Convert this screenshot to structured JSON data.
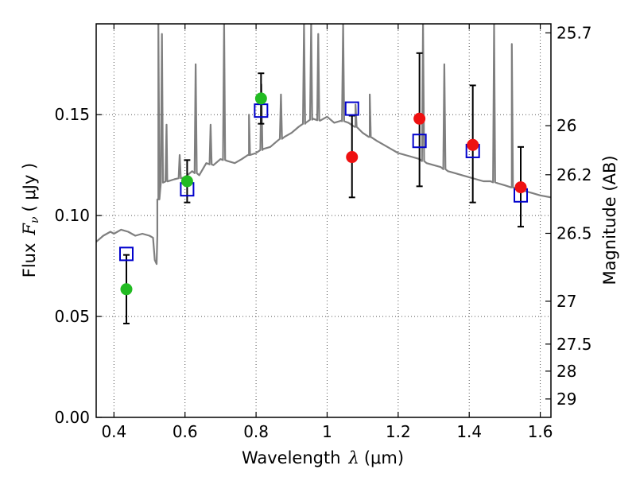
{
  "chart_data": {
    "type": "scatter",
    "xlabel_text": "Wavelength",
    "xlabel_symbol": "λ",
    "xlabel_unit": "(μm)",
    "ylabel_text": "Flux",
    "ylabel_symbol": "F",
    "ylabel_subscript": "ν",
    "ylabel_unit": "( μJy )",
    "y2label": "Magnitude (AB)",
    "xlim": [
      0.35,
      1.63
    ],
    "ylim": [
      0.0,
      0.195
    ],
    "grid": true,
    "x_ticks": [
      0.4,
      0.6,
      0.8,
      1.0,
      1.2,
      1.4,
      1.6
    ],
    "x_tick_labels": [
      "0.4",
      "0.6",
      "0.8",
      "1",
      "1.2",
      "1.4",
      "1.6"
    ],
    "y_ticks": [
      0.0,
      0.05,
      0.1,
      0.15
    ],
    "y_tick_labels": [
      "0.00",
      "0.05",
      "0.10",
      "0.15"
    ],
    "y2_tick_labels": [
      "25.7",
      "26",
      "26.2",
      "26.5",
      "27",
      "27.5",
      "28",
      "29"
    ],
    "y2_tick_mags": [
      25.7,
      26.0,
      26.2,
      26.5,
      27.0,
      27.5,
      28.0,
      29.0
    ],
    "model_points": [
      {
        "x": 0.435,
        "y": 0.081
      },
      {
        "x": 0.606,
        "y": 0.113
      },
      {
        "x": 0.814,
        "y": 0.152
      },
      {
        "x": 1.07,
        "y": 0.153
      },
      {
        "x": 1.26,
        "y": 0.137
      },
      {
        "x": 1.41,
        "y": 0.132
      },
      {
        "x": 1.545,
        "y": 0.11
      }
    ],
    "observed_points": [
      {
        "x": 0.435,
        "y": 0.0635,
        "err_low": 0.0465,
        "err_high": 0.0805,
        "color": "#22bb22"
      },
      {
        "x": 0.606,
        "y": 0.117,
        "err_low": 0.1065,
        "err_high": 0.1275,
        "color": "#22bb22"
      },
      {
        "x": 0.814,
        "y": 0.158,
        "err_low": 0.1455,
        "err_high": 0.1705,
        "color": "#22bb22"
      },
      {
        "x": 1.07,
        "y": 0.129,
        "err_low": 0.109,
        "err_high": 0.1495,
        "color": "#ee1111"
      },
      {
        "x": 1.26,
        "y": 0.148,
        "err_low": 0.1145,
        "err_high": 0.1805,
        "color": "#ee1111"
      },
      {
        "x": 1.41,
        "y": 0.135,
        "err_low": 0.1065,
        "err_high": 0.1645,
        "color": "#ee1111"
      },
      {
        "x": 1.545,
        "y": 0.114,
        "err_low": 0.0945,
        "err_high": 0.134,
        "color": "#ee1111"
      }
    ],
    "spectrum": [
      [
        0.35,
        0.087
      ],
      [
        0.37,
        0.09
      ],
      [
        0.39,
        0.092
      ],
      [
        0.4,
        0.091
      ],
      [
        0.42,
        0.093
      ],
      [
        0.44,
        0.092
      ],
      [
        0.46,
        0.09
      ],
      [
        0.48,
        0.091
      ],
      [
        0.5,
        0.09
      ],
      [
        0.51,
        0.089
      ],
      [
        0.515,
        0.078
      ],
      [
        0.52,
        0.076
      ],
      [
        0.522,
        0.09
      ],
      [
        0.525,
        0.108
      ],
      [
        0.528,
        0.116
      ],
      [
        0.55,
        0.117
      ],
      [
        0.57,
        0.118
      ],
      [
        0.6,
        0.119
      ],
      [
        0.62,
        0.122
      ],
      [
        0.64,
        0.12
      ],
      [
        0.66,
        0.126
      ],
      [
        0.68,
        0.125
      ],
      [
        0.7,
        0.128
      ],
      [
        0.72,
        0.127
      ],
      [
        0.74,
        0.126
      ],
      [
        0.76,
        0.128
      ],
      [
        0.78,
        0.13
      ],
      [
        0.8,
        0.131
      ],
      [
        0.82,
        0.133
      ],
      [
        0.84,
        0.134
      ],
      [
        0.86,
        0.137
      ],
      [
        0.88,
        0.139
      ],
      [
        0.9,
        0.141
      ],
      [
        0.92,
        0.144
      ],
      [
        0.94,
        0.146
      ],
      [
        0.96,
        0.148
      ],
      [
        0.98,
        0.147
      ],
      [
        1.0,
        0.149
      ],
      [
        1.02,
        0.146
      ],
      [
        1.04,
        0.147
      ],
      [
        1.06,
        0.146
      ],
      [
        1.08,
        0.144
      ],
      [
        1.1,
        0.141
      ],
      [
        1.12,
        0.139
      ],
      [
        1.14,
        0.137
      ],
      [
        1.16,
        0.135
      ],
      [
        1.18,
        0.133
      ],
      [
        1.2,
        0.131
      ],
      [
        1.22,
        0.13
      ],
      [
        1.24,
        0.129
      ],
      [
        1.26,
        0.128
      ],
      [
        1.28,
        0.126
      ],
      [
        1.3,
        0.125
      ],
      [
        1.32,
        0.124
      ],
      [
        1.34,
        0.122
      ],
      [
        1.36,
        0.121
      ],
      [
        1.38,
        0.12
      ],
      [
        1.4,
        0.119
      ],
      [
        1.42,
        0.118
      ],
      [
        1.44,
        0.117
      ],
      [
        1.46,
        0.117
      ],
      [
        1.48,
        0.116
      ],
      [
        1.5,
        0.115
      ],
      [
        1.52,
        0.114
      ],
      [
        1.54,
        0.113
      ],
      [
        1.56,
        0.112
      ],
      [
        1.58,
        0.111
      ],
      [
        1.6,
        0.11
      ],
      [
        1.63,
        0.109
      ]
    ],
    "emission_lines": [
      {
        "x": 0.525,
        "peak": 0.195
      },
      {
        "x": 0.535,
        "peak": 0.19
      },
      {
        "x": 0.548,
        "peak": 0.145
      },
      {
        "x": 0.585,
        "peak": 0.13
      },
      {
        "x": 0.63,
        "peak": 0.175
      },
      {
        "x": 0.672,
        "peak": 0.145
      },
      {
        "x": 0.71,
        "peak": 0.195
      },
      {
        "x": 0.78,
        "peak": 0.15
      },
      {
        "x": 0.815,
        "peak": 0.165
      },
      {
        "x": 0.87,
        "peak": 0.16
      },
      {
        "x": 0.935,
        "peak": 0.195
      },
      {
        "x": 0.955,
        "peak": 0.195
      },
      {
        "x": 0.975,
        "peak": 0.19
      },
      {
        "x": 1.045,
        "peak": 0.195
      },
      {
        "x": 1.08,
        "peak": 0.155
      },
      {
        "x": 1.12,
        "peak": 0.16
      },
      {
        "x": 1.27,
        "peak": 0.195
      },
      {
        "x": 1.33,
        "peak": 0.175
      },
      {
        "x": 1.47,
        "peak": 0.195
      },
      {
        "x": 1.52,
        "peak": 0.185
      }
    ],
    "spectrum_color": "#7f7f7f",
    "model_color": "#0000cc",
    "errorbar_color": "#000000"
  }
}
